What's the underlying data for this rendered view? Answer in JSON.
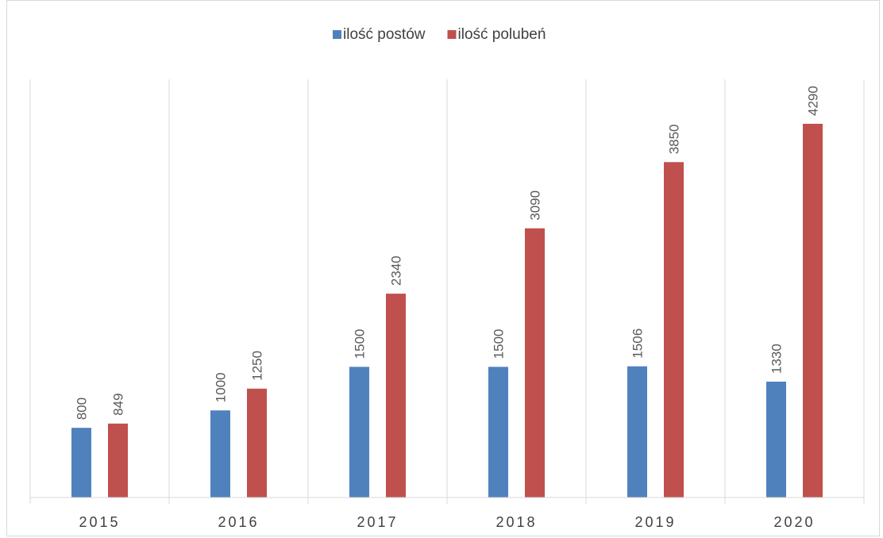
{
  "chart_data": {
    "type": "bar",
    "title": "",
    "xlabel": "",
    "ylabel": "",
    "categories": [
      "2015",
      "2016",
      "2017",
      "2018",
      "2019",
      "2020"
    ],
    "series": [
      {
        "name": "ilość postów",
        "color": "#4f81bd",
        "values": [
          800,
          1000,
          1500,
          1500,
          1506,
          1330
        ]
      },
      {
        "name": "ilość polubeń",
        "color": "#c0504d",
        "values": [
          849,
          1250,
          2340,
          3090,
          3850,
          4290
        ]
      }
    ],
    "ylim": [
      0,
      4800
    ],
    "grid": {
      "vertical_separators": true,
      "horizontal": false
    },
    "legend": {
      "position": "top"
    },
    "data_labels": {
      "orientation": "vertical"
    }
  }
}
